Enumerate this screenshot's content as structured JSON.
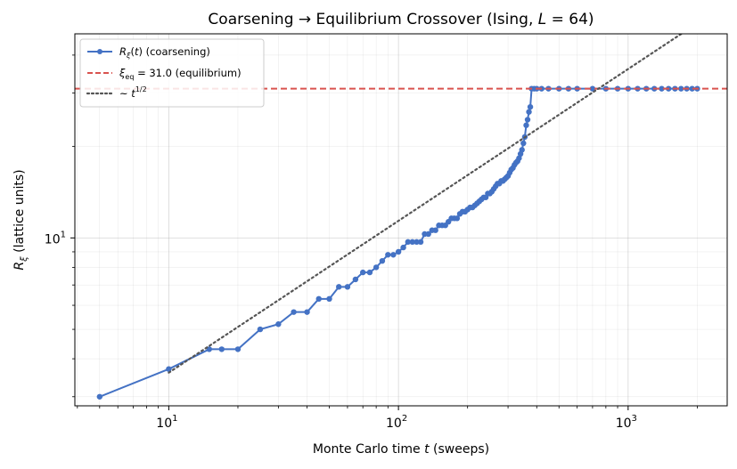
{
  "chart_data": {
    "type": "line",
    "title": "Coarsening → Equilibrium Crossover (Ising, L = 64)",
    "xlabel": "Monte Carlo time t (sweeps)",
    "ylabel": "Rξ (lattice units)",
    "xscale": "log",
    "yscale": "log",
    "xlim": [
      3.9,
      2700
    ],
    "ylim": [
      2.8,
      47
    ],
    "xticks": [
      {
        "value": 10,
        "base": "10",
        "exp": "1"
      },
      {
        "value": 100,
        "base": "10",
        "exp": "2"
      },
      {
        "value": 1000,
        "base": "10",
        "exp": "3"
      }
    ],
    "yticks": [
      {
        "value": 10,
        "base": "10",
        "exp": "1"
      }
    ],
    "grid": true,
    "legend_position": "top-left",
    "colors": {
      "coarsening": "#4472c4",
      "equilibrium": "#d9534f",
      "powerlaw": "#555555"
    },
    "legend": {
      "coarsening": "Rξ(t) (coarsening)",
      "equilibrium": "ξeq = 31.0 (equilibrium)",
      "powerlaw": "~ t^1/2"
    },
    "series": [
      {
        "key": "coarsening",
        "style": "line-markers",
        "x": [
          5,
          10,
          15,
          17,
          20,
          25,
          30,
          35,
          40,
          45,
          50,
          55,
          60,
          65,
          70,
          75,
          80,
          85,
          90,
          95,
          100,
          105,
          110,
          115,
          120,
          125,
          130,
          135,
          140,
          145,
          150,
          155,
          160,
          165,
          170,
          175,
          180,
          185,
          190,
          195,
          200,
          205,
          210,
          215,
          220,
          225,
          230,
          235,
          240,
          245,
          250,
          255,
          260,
          265,
          270,
          275,
          280,
          285,
          290,
          295,
          300,
          305,
          310,
          315,
          320,
          325,
          330,
          335,
          340,
          345,
          350,
          355,
          360,
          365,
          370,
          375,
          380,
          390,
          400,
          420,
          450,
          500,
          550,
          600,
          700,
          800,
          900,
          1000,
          1100,
          1200,
          1300,
          1400,
          1500,
          1600,
          1700,
          1800,
          1900,
          2000
        ],
        "y": [
          3.0,
          3.7,
          4.3,
          4.3,
          4.3,
          5.0,
          5.2,
          5.7,
          5.7,
          6.3,
          6.3,
          6.9,
          6.9,
          7.3,
          7.7,
          7.7,
          8.0,
          8.4,
          8.8,
          8.8,
          9.0,
          9.3,
          9.7,
          9.7,
          9.7,
          9.7,
          10.3,
          10.3,
          10.6,
          10.6,
          11.0,
          11.0,
          11.0,
          11.3,
          11.6,
          11.6,
          11.6,
          12.0,
          12.2,
          12.2,
          12.4,
          12.6,
          12.6,
          12.8,
          13.0,
          13.2,
          13.4,
          13.6,
          13.6,
          14.0,
          14.0,
          14.2,
          14.5,
          14.8,
          15.1,
          15.1,
          15.4,
          15.4,
          15.6,
          15.8,
          16.0,
          16.4,
          16.8,
          17.0,
          17.4,
          17.7,
          17.9,
          18.3,
          18.9,
          19.5,
          20.5,
          21.5,
          23.5,
          24.5,
          26.0,
          27.0,
          31.0,
          31.0,
          31.0,
          31.0,
          31.0,
          31.0,
          31.0,
          31.0,
          31.0,
          31.0,
          31.0,
          31.0,
          31.0,
          31.0,
          31.0,
          31.0,
          31.0,
          31.0,
          31.0,
          31.0,
          31.0,
          31.0
        ]
      },
      {
        "key": "equilibrium",
        "style": "hline",
        "y": 31.0
      },
      {
        "key": "powerlaw",
        "style": "dotted",
        "x": [
          10,
          2000
        ],
        "y": [
          3.6,
          50.9
        ]
      }
    ]
  }
}
